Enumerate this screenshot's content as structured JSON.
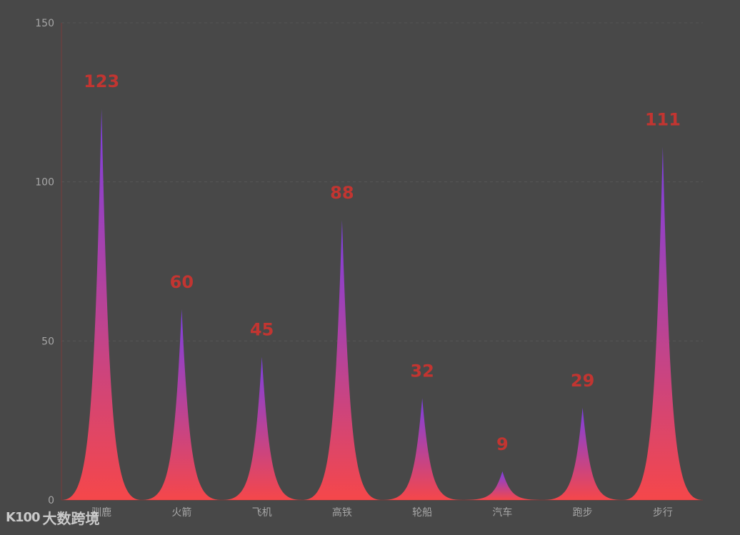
{
  "chart_data": {
    "type": "bar",
    "categories": [
      "驯鹿",
      "火箭",
      "飞机",
      "高铁",
      "轮船",
      "汽车",
      "跑步",
      "步行"
    ],
    "values": [
      123,
      60,
      45,
      88,
      32,
      9,
      29,
      111
    ],
    "ylim": [
      0,
      150
    ],
    "yticks": [
      0,
      50,
      100,
      150
    ],
    "grid": true,
    "bar_shape": "pictorial-spike",
    "colors": {
      "gradient_top": "#7b3fe4",
      "gradient_bottom": "#f5474a",
      "label": "#c23531",
      "axis_line": "#7a3a3a",
      "tick_text": "#a6a6a6",
      "grid": "#555555",
      "background": "#484848"
    }
  },
  "watermark": {
    "logo": "K100",
    "text": "大数跨境"
  }
}
